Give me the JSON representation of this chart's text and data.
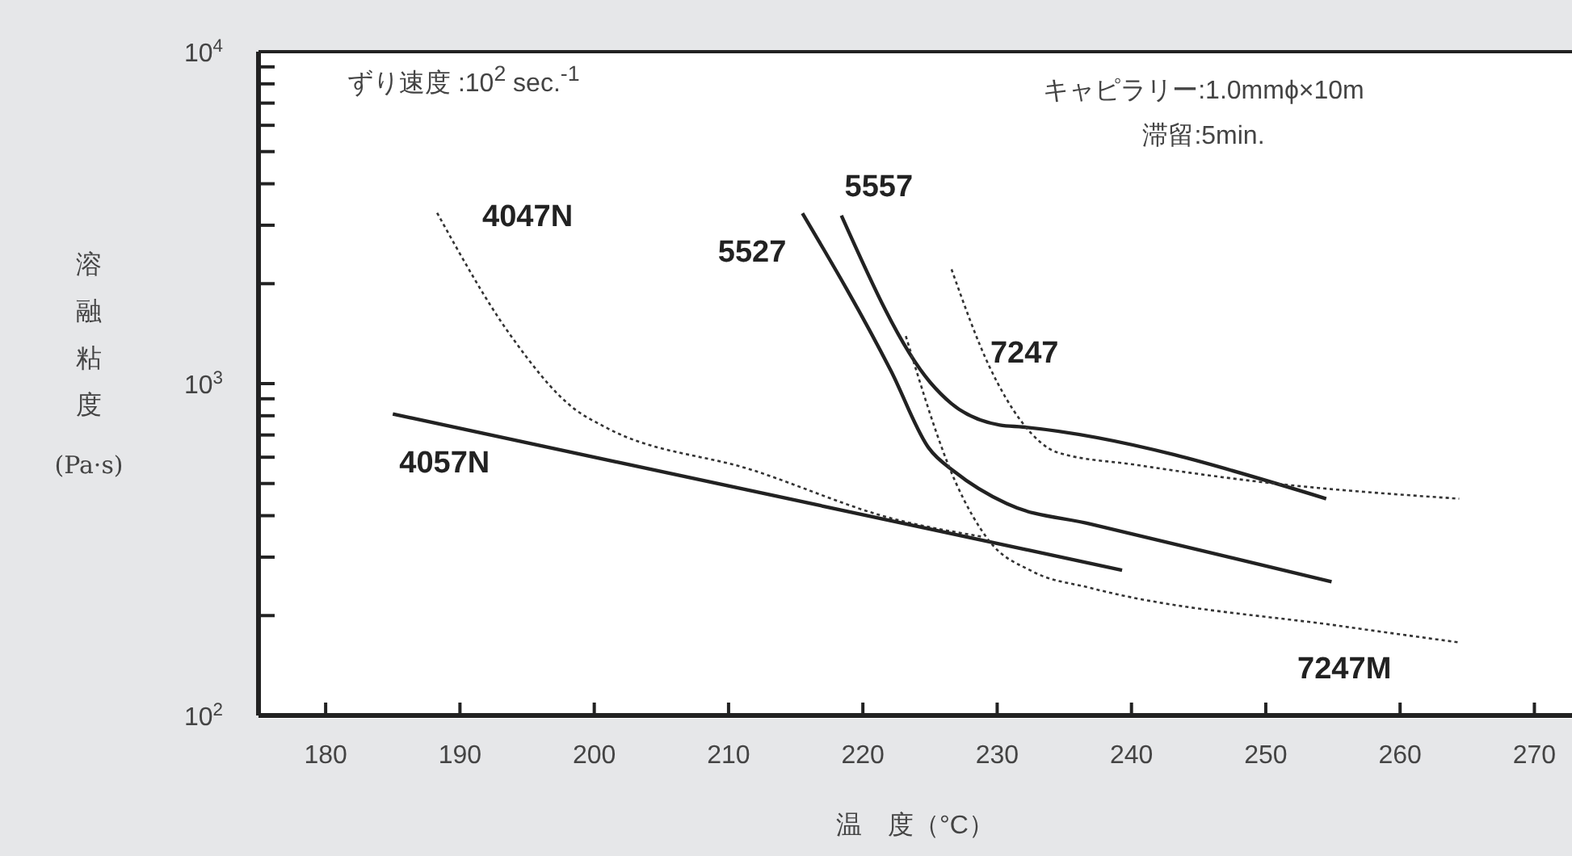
{
  "chart_data": {
    "type": "line",
    "xlabel": "温　度（°C）",
    "ylabel": "溶融粘度 (Pa·s)",
    "log": "y",
    "marker": "none",
    "xlim": [
      175,
      272.8
    ],
    "xticks": [
      180,
      190,
      200,
      210,
      220,
      230,
      240,
      250,
      260,
      270
    ],
    "ylim": [
      100,
      10000
    ],
    "yticks": [
      {
        "value": 100,
        "label": "10$^{2}$"
      },
      {
        "value": 200,
        "label": null
      },
      {
        "value": 300,
        "label": null
      },
      {
        "value": 400,
        "label": null
      },
      {
        "value": 500,
        "label": null
      },
      {
        "value": 600,
        "label": null
      },
      {
        "value": 700,
        "label": null
      },
      {
        "value": 800,
        "label": null
      },
      {
        "value": 900,
        "label": null
      },
      {
        "value": 1000,
        "label": "10$^{3}$"
      },
      {
        "value": 2000,
        "label": null
      },
      {
        "value": 3000,
        "label": null
      },
      {
        "value": 4000,
        "label": null
      },
      {
        "value": 5000,
        "label": null
      },
      {
        "value": 6000,
        "label": null
      },
      {
        "value": 7000,
        "label": null
      },
      {
        "value": 8000,
        "label": null
      },
      {
        "value": 9000,
        "label": null
      },
      {
        "value": 10000,
        "label": "10$^{4}$"
      }
    ],
    "annotations": [
      "ずり速度 :10$^{2}$ sec.$^{-1}$",
      "キャピラリー:1.0mmϕ×10m",
      "滞留:5min."
    ],
    "series": [
      {
        "name": "4047N",
        "color": "#333333",
        "line_style": "dotted",
        "x": [
          188.3,
          193.7,
          198.5,
          200.8,
          211.7,
          222.4,
          229
        ],
        "values": [
          3270,
          1410,
          840,
          740,
          550,
          390,
          345
        ]
      },
      {
        "name": "5527",
        "color": "#222222",
        "line_style": "solid",
        "x": [
          215.5,
          222.1,
          224.9,
          226.9,
          230.7,
          237,
          254.9
        ],
        "values": [
          3260,
          1090,
          640,
          540,
          435,
          377,
          253
        ]
      },
      {
        "name": "5557",
        "color": "#222222",
        "line_style": "solid",
        "x": [
          218.4,
          225,
          226.6,
          230.2,
          231.9,
          254.5
        ],
        "values": [
          3210,
          1010,
          870,
          750,
          740,
          450
        ]
      },
      {
        "name": "7247",
        "color": "#333333",
        "line_style": "dotted",
        "x": [
          226.6,
          229.4,
          231.9,
          234.5,
          240.2,
          249.7,
          264.4
        ],
        "values": [
          2210,
          1130,
          760,
          620,
          570,
          505,
          450
        ]
      },
      {
        "name": "4057N",
        "color": "#222222",
        "line_style": "solid",
        "x": [
          185,
          239.3
        ],
        "values": [
          810,
          274
        ]
      },
      {
        "name": "7247M",
        "color": "#333333",
        "line_style": "dotted",
        "x": [
          223.2,
          226.9,
          229.4,
          232.6,
          237,
          256,
          264.4
        ],
        "values": [
          1390,
          505,
          336,
          272,
          242,
          185,
          166
        ]
      }
    ]
  }
}
